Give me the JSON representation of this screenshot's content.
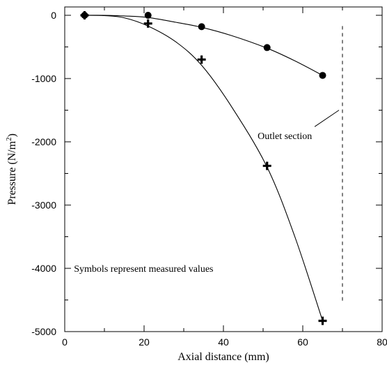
{
  "chart_data": {
    "type": "scatter",
    "xlabel": "Axial distance (mm)",
    "ylabel": "Pressure (N/m",
    "ylabel_superscript": "2",
    "ylabel_close": ")",
    "xlim": [
      0,
      80
    ],
    "ylim": [
      -5000,
      0
    ],
    "x_ticks": [
      0,
      20,
      40,
      60,
      80
    ],
    "y_ticks": [
      0,
      -1000,
      -2000,
      -3000,
      -4000,
      -5000
    ],
    "grid": false,
    "series": [
      {
        "marker": "circle",
        "points": [
          [
            5,
            0
          ],
          [
            21,
            0
          ],
          [
            34.5,
            -180
          ],
          [
            51,
            -510
          ],
          [
            65,
            -950
          ]
        ],
        "curve": [
          [
            5,
            0
          ],
          [
            10,
            0
          ],
          [
            15,
            -10
          ],
          [
            21,
            -35
          ],
          [
            28,
            -110
          ],
          [
            34.5,
            -190
          ],
          [
            42,
            -320
          ],
          [
            51,
            -520
          ],
          [
            58,
            -720
          ],
          [
            65,
            -950
          ]
        ]
      },
      {
        "marker": "plus",
        "points": [
          [
            5,
            0
          ],
          [
            21,
            -130
          ],
          [
            34.5,
            -700
          ],
          [
            51,
            -2380
          ],
          [
            65,
            -4830
          ]
        ],
        "curve": [
          [
            5,
            0
          ],
          [
            10,
            -5
          ],
          [
            15,
            -40
          ],
          [
            21,
            -170
          ],
          [
            28,
            -420
          ],
          [
            34.5,
            -790
          ],
          [
            42,
            -1440
          ],
          [
            51,
            -2400
          ],
          [
            58,
            -3500
          ],
          [
            65,
            -4830
          ]
        ]
      }
    ],
    "outlet": {
      "x": 70,
      "y_range": [
        -4550,
        -170
      ],
      "label": "Outlet section",
      "leader_from": [
        70,
        -1500
      ],
      "leader_to": [
        63,
        -1760
      ]
    },
    "annotation": {
      "text": "Symbols represent measured values",
      "x": 2.5,
      "y": -4000
    }
  }
}
